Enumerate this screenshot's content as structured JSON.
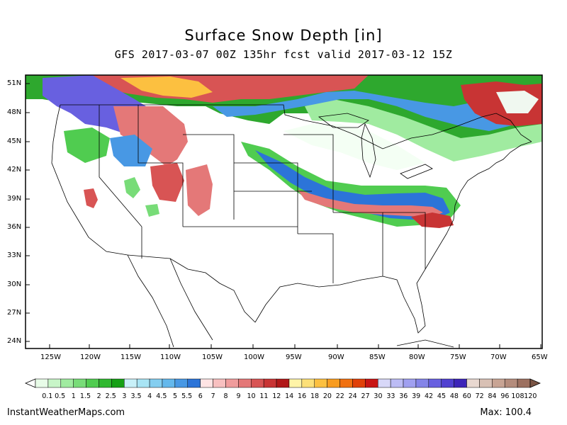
{
  "title": "Surface Snow Depth [in]",
  "subtitle": "GFS 2017-03-07 00Z 135hr fcst valid 2017-03-12 15Z",
  "credit": "InstantWeatherMaps.com",
  "max_label": "Max: 100.4",
  "lat_labels": [
    "51N",
    "48N",
    "45N",
    "42N",
    "39N",
    "36N",
    "33N",
    "30N",
    "27N",
    "24N"
  ],
  "lon_labels": [
    "125W",
    "120W",
    "115W",
    "110W",
    "105W",
    "100W",
    "95W",
    "90W",
    "85W",
    "80W",
    "75W",
    "70W",
    "65W"
  ],
  "colorbar": {
    "labels": [
      "0.1",
      "0.5",
      "1",
      "1.5",
      "2",
      "2.5",
      "3",
      "3.5",
      "4",
      "4.5",
      "5",
      "5.5",
      "6",
      "7",
      "8",
      "9",
      "10",
      "11",
      "12",
      "14",
      "16",
      "18",
      "20",
      "22",
      "24",
      "27",
      "30",
      "33",
      "36",
      "39",
      "42",
      "45",
      "48",
      "60",
      "72",
      "84",
      "96",
      "108",
      "120"
    ],
    "colors": [
      "#e8fce8",
      "#c8f5c8",
      "#a0eba0",
      "#78dc78",
      "#50cc50",
      "#30b830",
      "#16a016",
      "#c8f0f8",
      "#a8e4f4",
      "#84cef0",
      "#64b8ec",
      "#4898e4",
      "#2c74d8",
      "#ffe4e4",
      "#f8c0c0",
      "#f09c9c",
      "#e47878",
      "#d85454",
      "#c83434",
      "#b01818",
      "#fff4a8",
      "#fce078",
      "#fcc040",
      "#f89c20",
      "#f07010",
      "#e04008",
      "#c81414",
      "#d8d8f8",
      "#bcbcf4",
      "#a0a0f0",
      "#8484e8",
      "#6860e0",
      "#5040d0",
      "#3c24b8",
      "#e8d8d0",
      "#d8c0b4",
      "#c8a494",
      "#b48c7c",
      "#9c7060"
    ]
  },
  "map_data": {
    "region": "Continental United States",
    "lat_range": [
      23,
      52
    ],
    "lon_range": [
      -127,
      -65
    ],
    "variable": "Surface Snow Depth",
    "units": "in"
  }
}
